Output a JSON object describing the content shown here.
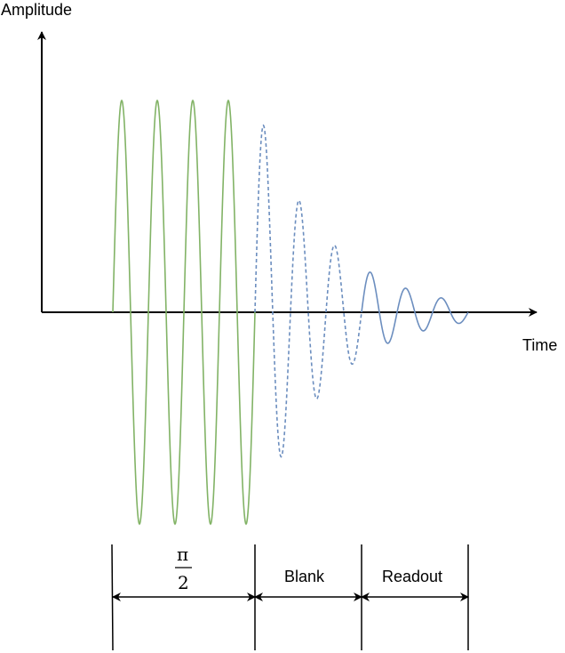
{
  "axes": {
    "y_label": "Amplitude",
    "x_label": "Time"
  },
  "segments": [
    {
      "id": "pulse",
      "numerator": "π",
      "denominator": "2",
      "color": "#82b366",
      "style": "solid"
    },
    {
      "id": "blank",
      "label": "Blank",
      "color": "#6c8ebf",
      "style": "dashed"
    },
    {
      "id": "readout",
      "label": "Readout",
      "color": "#6c8ebf",
      "style": "solid"
    }
  ],
  "colors": {
    "axis": "#000000",
    "pulse_wave": "#82b366",
    "decay_wave": "#6c8ebf"
  }
}
